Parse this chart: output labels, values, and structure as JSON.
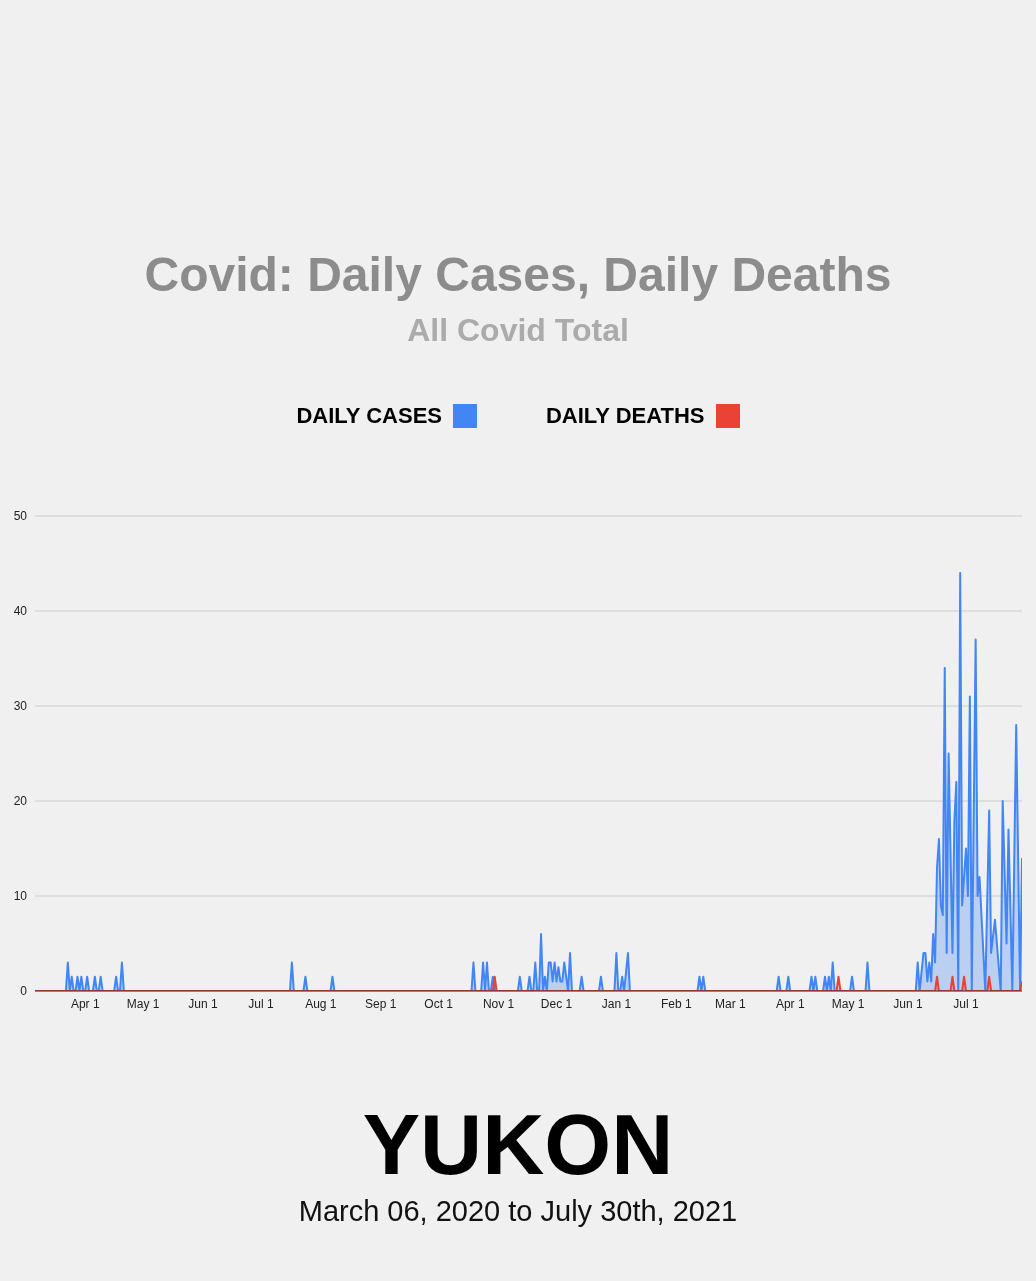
{
  "chart_data": {
    "type": "area",
    "title": "Covid: Daily Cases, Daily Deaths",
    "subtitle": "All Covid Total",
    "annotations": [
      "YUKON",
      "March 06, 2020 to July 30th, 2021"
    ],
    "xlim": [
      "2020-03-06",
      "2021-07-30"
    ],
    "xticks": [
      {
        "value": "2020-04-01",
        "label": "Apr 1"
      },
      {
        "value": "2020-05-01",
        "label": "May 1"
      },
      {
        "value": "2020-06-01",
        "label": "Jun 1"
      },
      {
        "value": "2020-07-01",
        "label": "Jul 1"
      },
      {
        "value": "2020-08-01",
        "label": "Aug 1"
      },
      {
        "value": "2020-09-01",
        "label": "Sep 1"
      },
      {
        "value": "2020-10-01",
        "label": "Oct 1"
      },
      {
        "value": "2020-11-01",
        "label": "Nov 1"
      },
      {
        "value": "2020-12-01",
        "label": "Dec 1"
      },
      {
        "value": "2021-01-01",
        "label": "Jan 1"
      },
      {
        "value": "2021-02-01",
        "label": "Feb 1"
      },
      {
        "value": "2021-03-01",
        "label": "Mar 1"
      },
      {
        "value": "2021-04-01",
        "label": "Apr 1"
      },
      {
        "value": "2021-05-01",
        "label": "May 1"
      },
      {
        "value": "2021-06-01",
        "label": "Jun 1"
      },
      {
        "value": "2021-07-01",
        "label": "Jul 1"
      }
    ],
    "ylim": [
      0,
      50
    ],
    "yticks": [
      0,
      10,
      20,
      30,
      40,
      50
    ],
    "grid": "y",
    "legend": "top",
    "series": [
      {
        "name": "DAILY CASES",
        "color": "#4285f4",
        "x": [
          "2020-03-06",
          "2020-03-22",
          "2020-03-23",
          "2020-03-24",
          "2020-03-25",
          "2020-03-26",
          "2020-03-27",
          "2020-03-28",
          "2020-03-29",
          "2020-03-30",
          "2020-03-31",
          "2020-04-01",
          "2020-04-02",
          "2020-04-03",
          "2020-04-05",
          "2020-04-06",
          "2020-04-07",
          "2020-04-08",
          "2020-04-09",
          "2020-04-10",
          "2020-04-16",
          "2020-04-17",
          "2020-04-18",
          "2020-04-19",
          "2020-04-20",
          "2020-04-21",
          "2020-07-16",
          "2020-07-17",
          "2020-07-18",
          "2020-07-23",
          "2020-07-24",
          "2020-07-25",
          "2020-08-06",
          "2020-08-07",
          "2020-08-08",
          "2020-10-18",
          "2020-10-19",
          "2020-10-20",
          "2020-10-23",
          "2020-10-24",
          "2020-10-25",
          "2020-10-26",
          "2020-10-27",
          "2020-10-28",
          "2020-10-29",
          "2020-10-30",
          "2020-11-11",
          "2020-11-12",
          "2020-11-13",
          "2020-11-16",
          "2020-11-17",
          "2020-11-18",
          "2020-11-19",
          "2020-11-20",
          "2020-11-21",
          "2020-11-22",
          "2020-11-23",
          "2020-11-24",
          "2020-11-25",
          "2020-11-26",
          "2020-11-27",
          "2020-11-28",
          "2020-11-29",
          "2020-11-30",
          "2020-12-01",
          "2020-12-02",
          "2020-12-03",
          "2020-12-04",
          "2020-12-05",
          "2020-12-07",
          "2020-12-08",
          "2020-12-09",
          "2020-12-13",
          "2020-12-14",
          "2020-12-15",
          "2020-12-23",
          "2020-12-24",
          "2020-12-25",
          "2020-12-31",
          "2021-01-01",
          "2021-01-02",
          "2021-01-03",
          "2021-01-04",
          "2021-01-05",
          "2021-01-07",
          "2021-01-08",
          "2021-02-12",
          "2021-02-13",
          "2021-02-14",
          "2021-02-15",
          "2021-02-16",
          "2021-03-25",
          "2021-03-26",
          "2021-03-27",
          "2021-03-30",
          "2021-03-31",
          "2021-04-01",
          "2021-04-11",
          "2021-04-12",
          "2021-04-13",
          "2021-04-14",
          "2021-04-15",
          "2021-04-18",
          "2021-04-19",
          "2021-04-20",
          "2021-04-21",
          "2021-04-22",
          "2021-04-23",
          "2021-04-24",
          "2021-05-02",
          "2021-05-03",
          "2021-05-04",
          "2021-05-10",
          "2021-05-11",
          "2021-05-12",
          "2021-06-05",
          "2021-06-06",
          "2021-06-07",
          "2021-06-09",
          "2021-06-10",
          "2021-06-11",
          "2021-06-12",
          "2021-06-13",
          "2021-06-14",
          "2021-06-15",
          "2021-06-16",
          "2021-06-17",
          "2021-06-18",
          "2021-06-19",
          "2021-06-20",
          "2021-06-21",
          "2021-06-22",
          "2021-06-24",
          "2021-06-25",
          "2021-06-26",
          "2021-06-27",
          "2021-06-28",
          "2021-06-29",
          "2021-07-01",
          "2021-07-02",
          "2021-07-03",
          "2021-07-04",
          "2021-07-06",
          "2021-07-07",
          "2021-07-08",
          "2021-07-11",
          "2021-07-13",
          "2021-07-14",
          "2021-07-16",
          "2021-07-19",
          "2021-07-20",
          "2021-07-22",
          "2021-07-23",
          "2021-07-25",
          "2021-07-27",
          "2021-07-29",
          "2021-07-30"
        ],
        "values": [
          0,
          0,
          3,
          0,
          1.5,
          0,
          0,
          1.5,
          0,
          1.5,
          0,
          0,
          1.5,
          0,
          0,
          1.5,
          0,
          0,
          1.5,
          0,
          0,
          1.5,
          0,
          0,
          3,
          0,
          0,
          3,
          0,
          0,
          1.5,
          0,
          0,
          1.5,
          0,
          0,
          3,
          0,
          0,
          3,
          0,
          3,
          0,
          0,
          1.5,
          0,
          0,
          1.5,
          0,
          0,
          1.5,
          0,
          0,
          3,
          0,
          0,
          6,
          0,
          1.5,
          0,
          3,
          3,
          1,
          3,
          1,
          2.5,
          1,
          1,
          3,
          0,
          4,
          0,
          0,
          1.5,
          0,
          0,
          1.5,
          0,
          0,
          4,
          0,
          0,
          1.5,
          0,
          4,
          0,
          0,
          1.5,
          0,
          1.5,
          0,
          0,
          1.5,
          0,
          0,
          1.5,
          0,
          0,
          1.5,
          0,
          1.5,
          0,
          0,
          1.5,
          0,
          1.5,
          0,
          3,
          0,
          0,
          1.5,
          0,
          0,
          3,
          0,
          0,
          3,
          0,
          4,
          4,
          1,
          3,
          1,
          6,
          3,
          13,
          16,
          9,
          8,
          34,
          4,
          25,
          4,
          18,
          22,
          0,
          44,
          9,
          15,
          10,
          31,
          0,
          37,
          10,
          12,
          0,
          19,
          4,
          7.5,
          0,
          20,
          5,
          17,
          0,
          28,
          0,
          14
        ]
      },
      {
        "name": "DAILY DEATHS",
        "color": "#ea4335",
        "x": [
          "2020-03-06",
          "2020-10-29",
          "2020-10-30",
          "2020-10-31",
          "2021-04-25",
          "2021-04-26",
          "2021-04-27",
          "2021-06-15",
          "2021-06-16",
          "2021-06-17",
          "2021-06-23",
          "2021-06-24",
          "2021-06-25",
          "2021-06-29",
          "2021-06-30",
          "2021-07-01",
          "2021-07-12",
          "2021-07-13",
          "2021-07-14",
          "2021-07-29",
          "2021-07-30"
        ],
        "values": [
          0,
          0,
          1.5,
          0,
          0,
          1.5,
          0,
          0,
          1.5,
          0,
          0,
          1.5,
          0,
          0,
          1.5,
          0,
          0,
          1.5,
          0,
          0,
          1
        ]
      }
    ]
  }
}
